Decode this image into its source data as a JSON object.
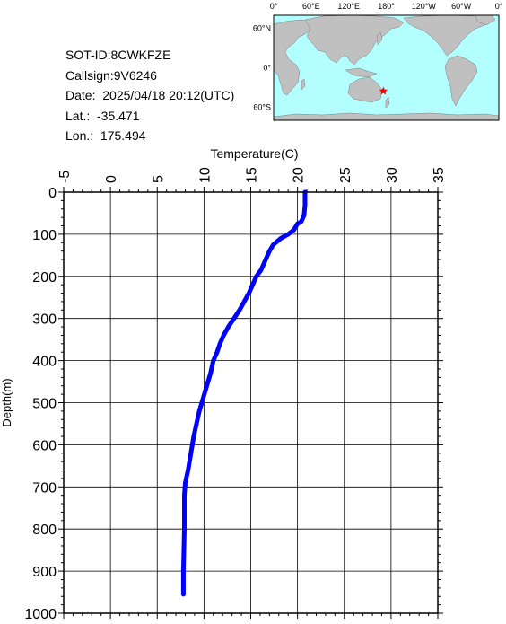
{
  "info": {
    "sot_id": "SOT-ID:8CWKFZE",
    "callsign": "Callsign:9V6246",
    "date": "Date:  2025/04/18 20:12(UTC)",
    "lat": "Lat.:  -35.471",
    "lon": "Lon.:  175.494"
  },
  "map": {
    "lon_labels": [
      "0°",
      "60°E",
      "120°E",
      "180°",
      "120°W",
      "60°W",
      "0°"
    ],
    "lat_labels": [
      "60°N",
      "0°",
      "60°S"
    ],
    "marker": {
      "lat": -35.471,
      "lon": 175.494,
      "symbol": "star",
      "color": "#ff0000"
    },
    "ocean_color": "#b3ffff",
    "land_color": "#c0c0c0"
  },
  "chart_data": {
    "type": "line",
    "title": "",
    "xlabel": "Temperature(C)",
    "ylabel": "Depth(m)",
    "xlim": [
      -5,
      35
    ],
    "ylim": [
      1000,
      0
    ],
    "x_axis_position": "top",
    "y_inverted": true,
    "grid": true,
    "xticks": [
      -5,
      0,
      5,
      10,
      15,
      20,
      25,
      30,
      35
    ],
    "yticks": [
      0,
      100,
      200,
      300,
      400,
      500,
      600,
      700,
      800,
      900,
      1000
    ],
    "line_color": "#0000ff",
    "series": [
      {
        "x": [
          20.8,
          20.8,
          20.7,
          20.5,
          20.4,
          20.0,
          19.6,
          19.0,
          18.2,
          17.4,
          17.0,
          16.6,
          16.1,
          15.6,
          15.2,
          14.8,
          14.3,
          13.8,
          13.2,
          12.6,
          12.1,
          11.7,
          11.4,
          11.0,
          10.7,
          10.3,
          9.9,
          9.5,
          9.2,
          8.9,
          8.6,
          8.3,
          8.0,
          7.9,
          7.9,
          7.8,
          7.8
        ],
        "y": [
          0,
          30,
          55,
          65,
          70,
          75,
          90,
          100,
          110,
          125,
          140,
          160,
          185,
          200,
          220,
          240,
          260,
          280,
          300,
          320,
          340,
          360,
          380,
          400,
          430,
          460,
          490,
          520,
          550,
          580,
          620,
          660,
          690,
          720,
          800,
          900,
          955
        ]
      }
    ]
  }
}
